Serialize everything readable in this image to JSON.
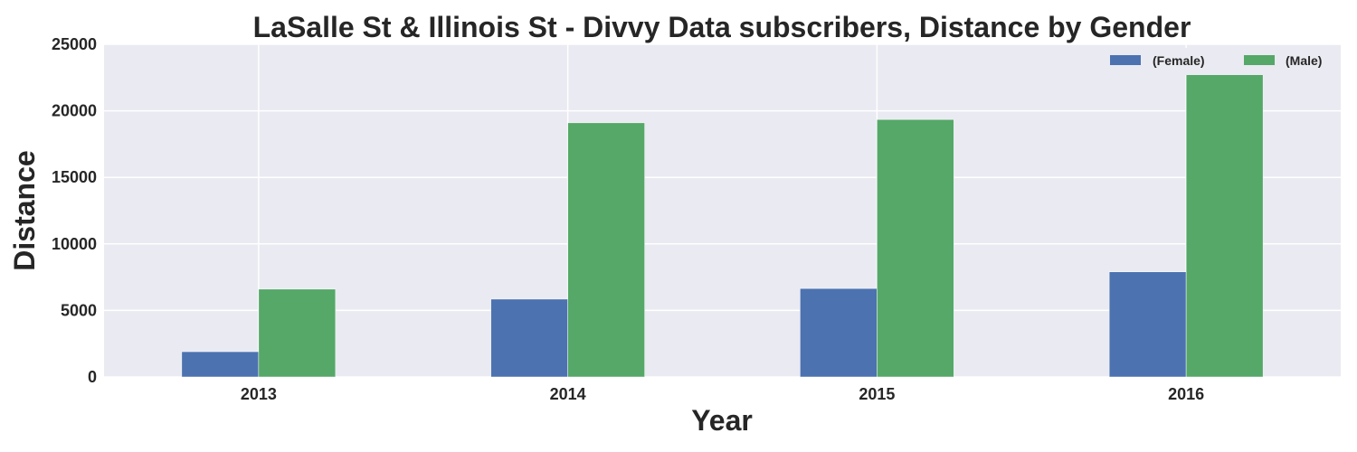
{
  "chart_data": {
    "type": "bar",
    "title": "LaSalle St & Illinois St - Divvy Data subscribers, Distance by Gender",
    "xlabel": "Year",
    "ylabel": "Distance",
    "categories": [
      "2013",
      "2014",
      "2015",
      "2016"
    ],
    "series": [
      {
        "name": "(Female)",
        "values": [
          1900,
          5850,
          6650,
          7900
        ],
        "color": "#4c72b0"
      },
      {
        "name": "(Male)",
        "values": [
          6600,
          19100,
          19350,
          22800
        ],
        "color": "#55a868"
      }
    ],
    "ylim": [
      0,
      25000
    ],
    "yticks": [
      "0",
      "5000",
      "10000",
      "15000",
      "20000",
      "25000"
    ],
    "grid": true,
    "legend_position": "top-right",
    "background_color": "#eaeaf2",
    "grid_color": "#ffffff"
  }
}
